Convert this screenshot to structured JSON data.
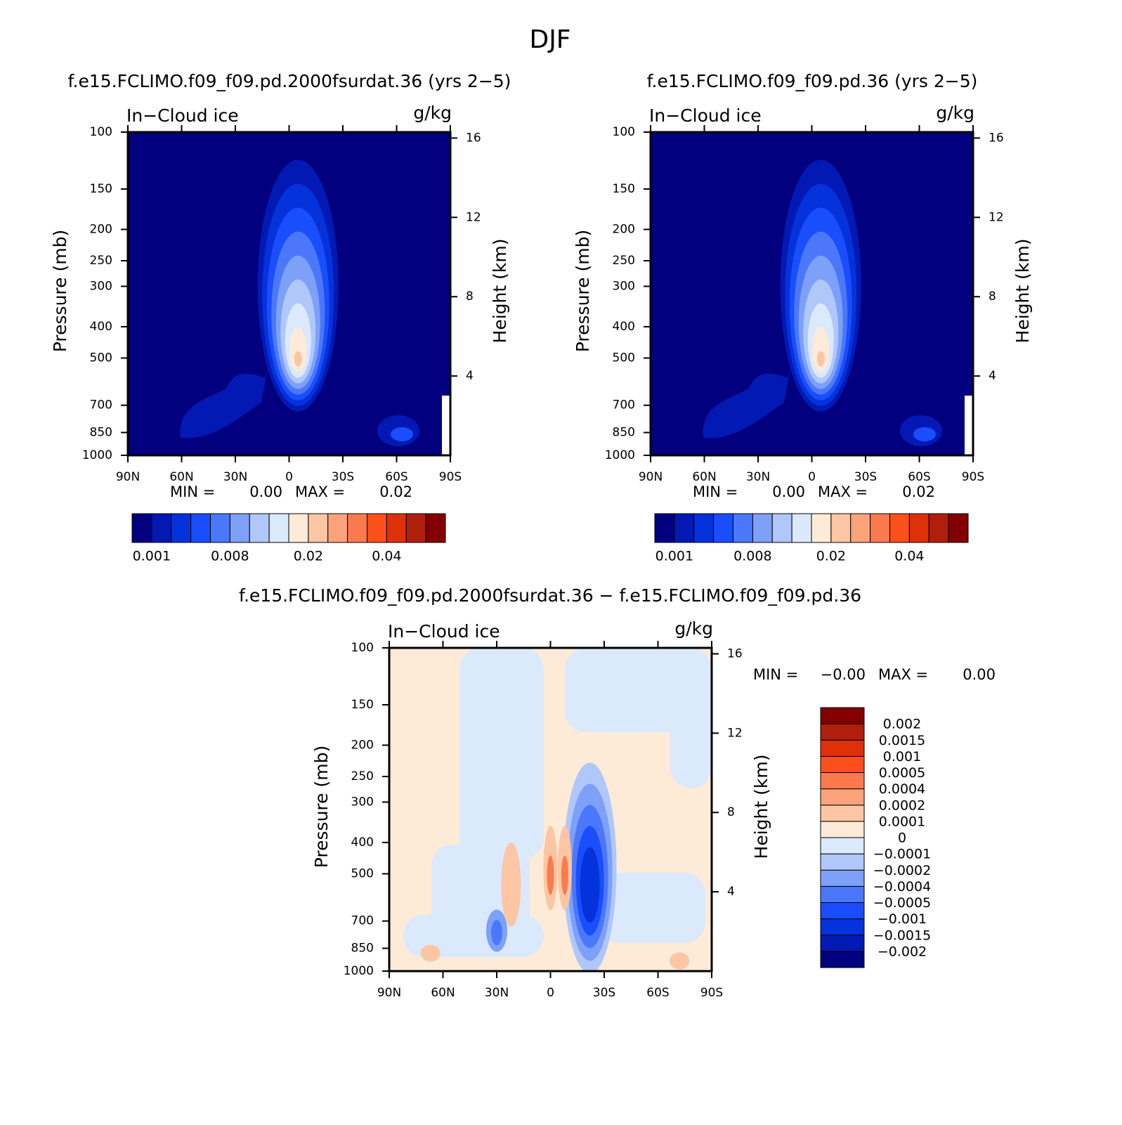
{
  "title": "DJF",
  "chart_data": [
    {
      "type": "contour",
      "title": "f.e15.FCLIMO.f09_f09.pd.2000fsurdat.36 (yrs 2−5)",
      "left_label": "In−Cloud ice",
      "right_label": "g/kg",
      "y_label": "Pressure (mb)",
      "y2_label": "Height (km)",
      "ylog": true,
      "xlim": [
        90,
        -90
      ],
      "xticks": [
        {
          "value": 90,
          "label": "90N"
        },
        {
          "value": 60,
          "label": "60N"
        },
        {
          "value": 30,
          "label": "30N"
        },
        0,
        {
          "value": -30,
          "label": "30S"
        },
        {
          "value": -60,
          "label": "60S"
        },
        {
          "value": -90,
          "label": "90S"
        }
      ],
      "ylim": [
        1000,
        100
      ],
      "yticks": [
        100,
        150,
        200,
        250,
        300,
        400,
        500,
        700,
        850,
        1000
      ],
      "y2lim": [
        0,
        16.3
      ],
      "y2ticks": [
        4,
        8,
        12,
        16
      ],
      "min_text": "MIN =",
      "min": 0,
      "min_label": "0.00",
      "max_text": "MAX =",
      "max": 0.02,
      "max_label": "0.02",
      "colors": [
        "#02007f",
        "#0319b4",
        "#0433db",
        "#1a4dfc",
        "#4b78fb",
        "#7da0f9",
        "#b0c7fa",
        "#dbe9fd",
        "#fdebd7",
        "#fcc6a4",
        "#fca37b",
        "#fb7a4d",
        "#fb4f1c",
        "#df3108",
        "#b01f0b",
        "#840000"
      ],
      "levels": [
        0.001,
        0.008,
        0.02,
        0.04
      ]
    },
    {
      "type": "contour",
      "title": "f.e15.FCLIMO.f09_f09.pd.36 (yrs 2−5)",
      "left_label": "In−Cloud ice",
      "right_label": "g/kg",
      "y_label": "Pressure (mb)",
      "y2_label": "Height (km)",
      "ylog": true,
      "xlim": [
        90,
        -90
      ],
      "xticks": [
        {
          "value": 90,
          "label": "90N"
        },
        {
          "value": 60,
          "label": "60N"
        },
        {
          "value": 30,
          "label": "30N"
        },
        0,
        {
          "value": -30,
          "label": "30S"
        },
        {
          "value": -60,
          "label": "60S"
        },
        {
          "value": -90,
          "label": "90S"
        }
      ],
      "ylim": [
        1000,
        100
      ],
      "yticks": [
        100,
        150,
        200,
        250,
        300,
        400,
        500,
        700,
        850,
        1000
      ],
      "y2lim": [
        0,
        16.3
      ],
      "y2ticks": [
        4,
        8,
        12,
        16
      ],
      "min_text": "MIN =",
      "min": 0,
      "min_label": "0.00",
      "max_text": "MAX =",
      "max": 0.02,
      "max_label": "0.02",
      "colors": [
        "#02007f",
        "#0319b4",
        "#0433db",
        "#1a4dfc",
        "#4b78fb",
        "#7da0f9",
        "#b0c7fa",
        "#dbe9fd",
        "#fdebd7",
        "#fcc6a4",
        "#fca37b",
        "#fb7a4d",
        "#fb4f1c",
        "#df3108",
        "#b01f0b",
        "#840000"
      ],
      "levels": [
        0.001,
        0.008,
        0.02,
        0.04
      ]
    },
    {
      "type": "contour",
      "title": "f.e15.FCLIMO.f09_f09.pd.2000fsurdat.36 − f.e15.FCLIMO.f09_f09.pd.36",
      "left_label": "In−Cloud ice",
      "right_label": "g/kg",
      "y_label": "Pressure (mb)",
      "y2_label": "Height (km)",
      "ylog": true,
      "xlim": [
        90,
        -90
      ],
      "xticks": [
        {
          "value": 90,
          "label": "90N"
        },
        {
          "value": 60,
          "label": "60N"
        },
        {
          "value": 30,
          "label": "30N"
        },
        0,
        {
          "value": -30,
          "label": "30S"
        },
        {
          "value": -60,
          "label": "60S"
        },
        {
          "value": -90,
          "label": "90S"
        }
      ],
      "ylim": [
        1000,
        100
      ],
      "yticks": [
        100,
        150,
        200,
        250,
        300,
        400,
        500,
        700,
        850,
        1000
      ],
      "y2lim": [
        0,
        16.3
      ],
      "y2ticks": [
        4,
        8,
        12,
        16
      ],
      "min_text": "MIN =",
      "min": -0.002,
      "min_label": "−0.00",
      "max_text": "MAX =",
      "max": 0.002,
      "max_label": "0.00",
      "colors": [
        "#02007f",
        "#0319b4",
        "#0433db",
        "#1a4dfc",
        "#4b78fb",
        "#7da0f9",
        "#b0c7fa",
        "#dbe9fd",
        "#fdebd7",
        "#fcc6a4",
        "#fca37b",
        "#fb7a4d",
        "#fb4f1c",
        "#df3108",
        "#b01f0b",
        "#840000"
      ],
      "levels": [
        {
          "value": -0.002,
          "label": "−0.002"
        },
        {
          "value": -0.0015,
          "label": "−0.0015"
        },
        {
          "value": -0.001,
          "label": "−0.001"
        },
        {
          "value": -0.0005,
          "label": "−0.0005"
        },
        {
          "value": -0.0004,
          "label": "−0.0004"
        },
        {
          "value": -0.0002,
          "label": "−0.0002"
        },
        {
          "value": -0.0001,
          "label": "−0.0001"
        },
        0,
        0.0001,
        0.0002,
        0.0004,
        0.0005,
        0.001,
        0.0015,
        0.002
      ]
    }
  ]
}
